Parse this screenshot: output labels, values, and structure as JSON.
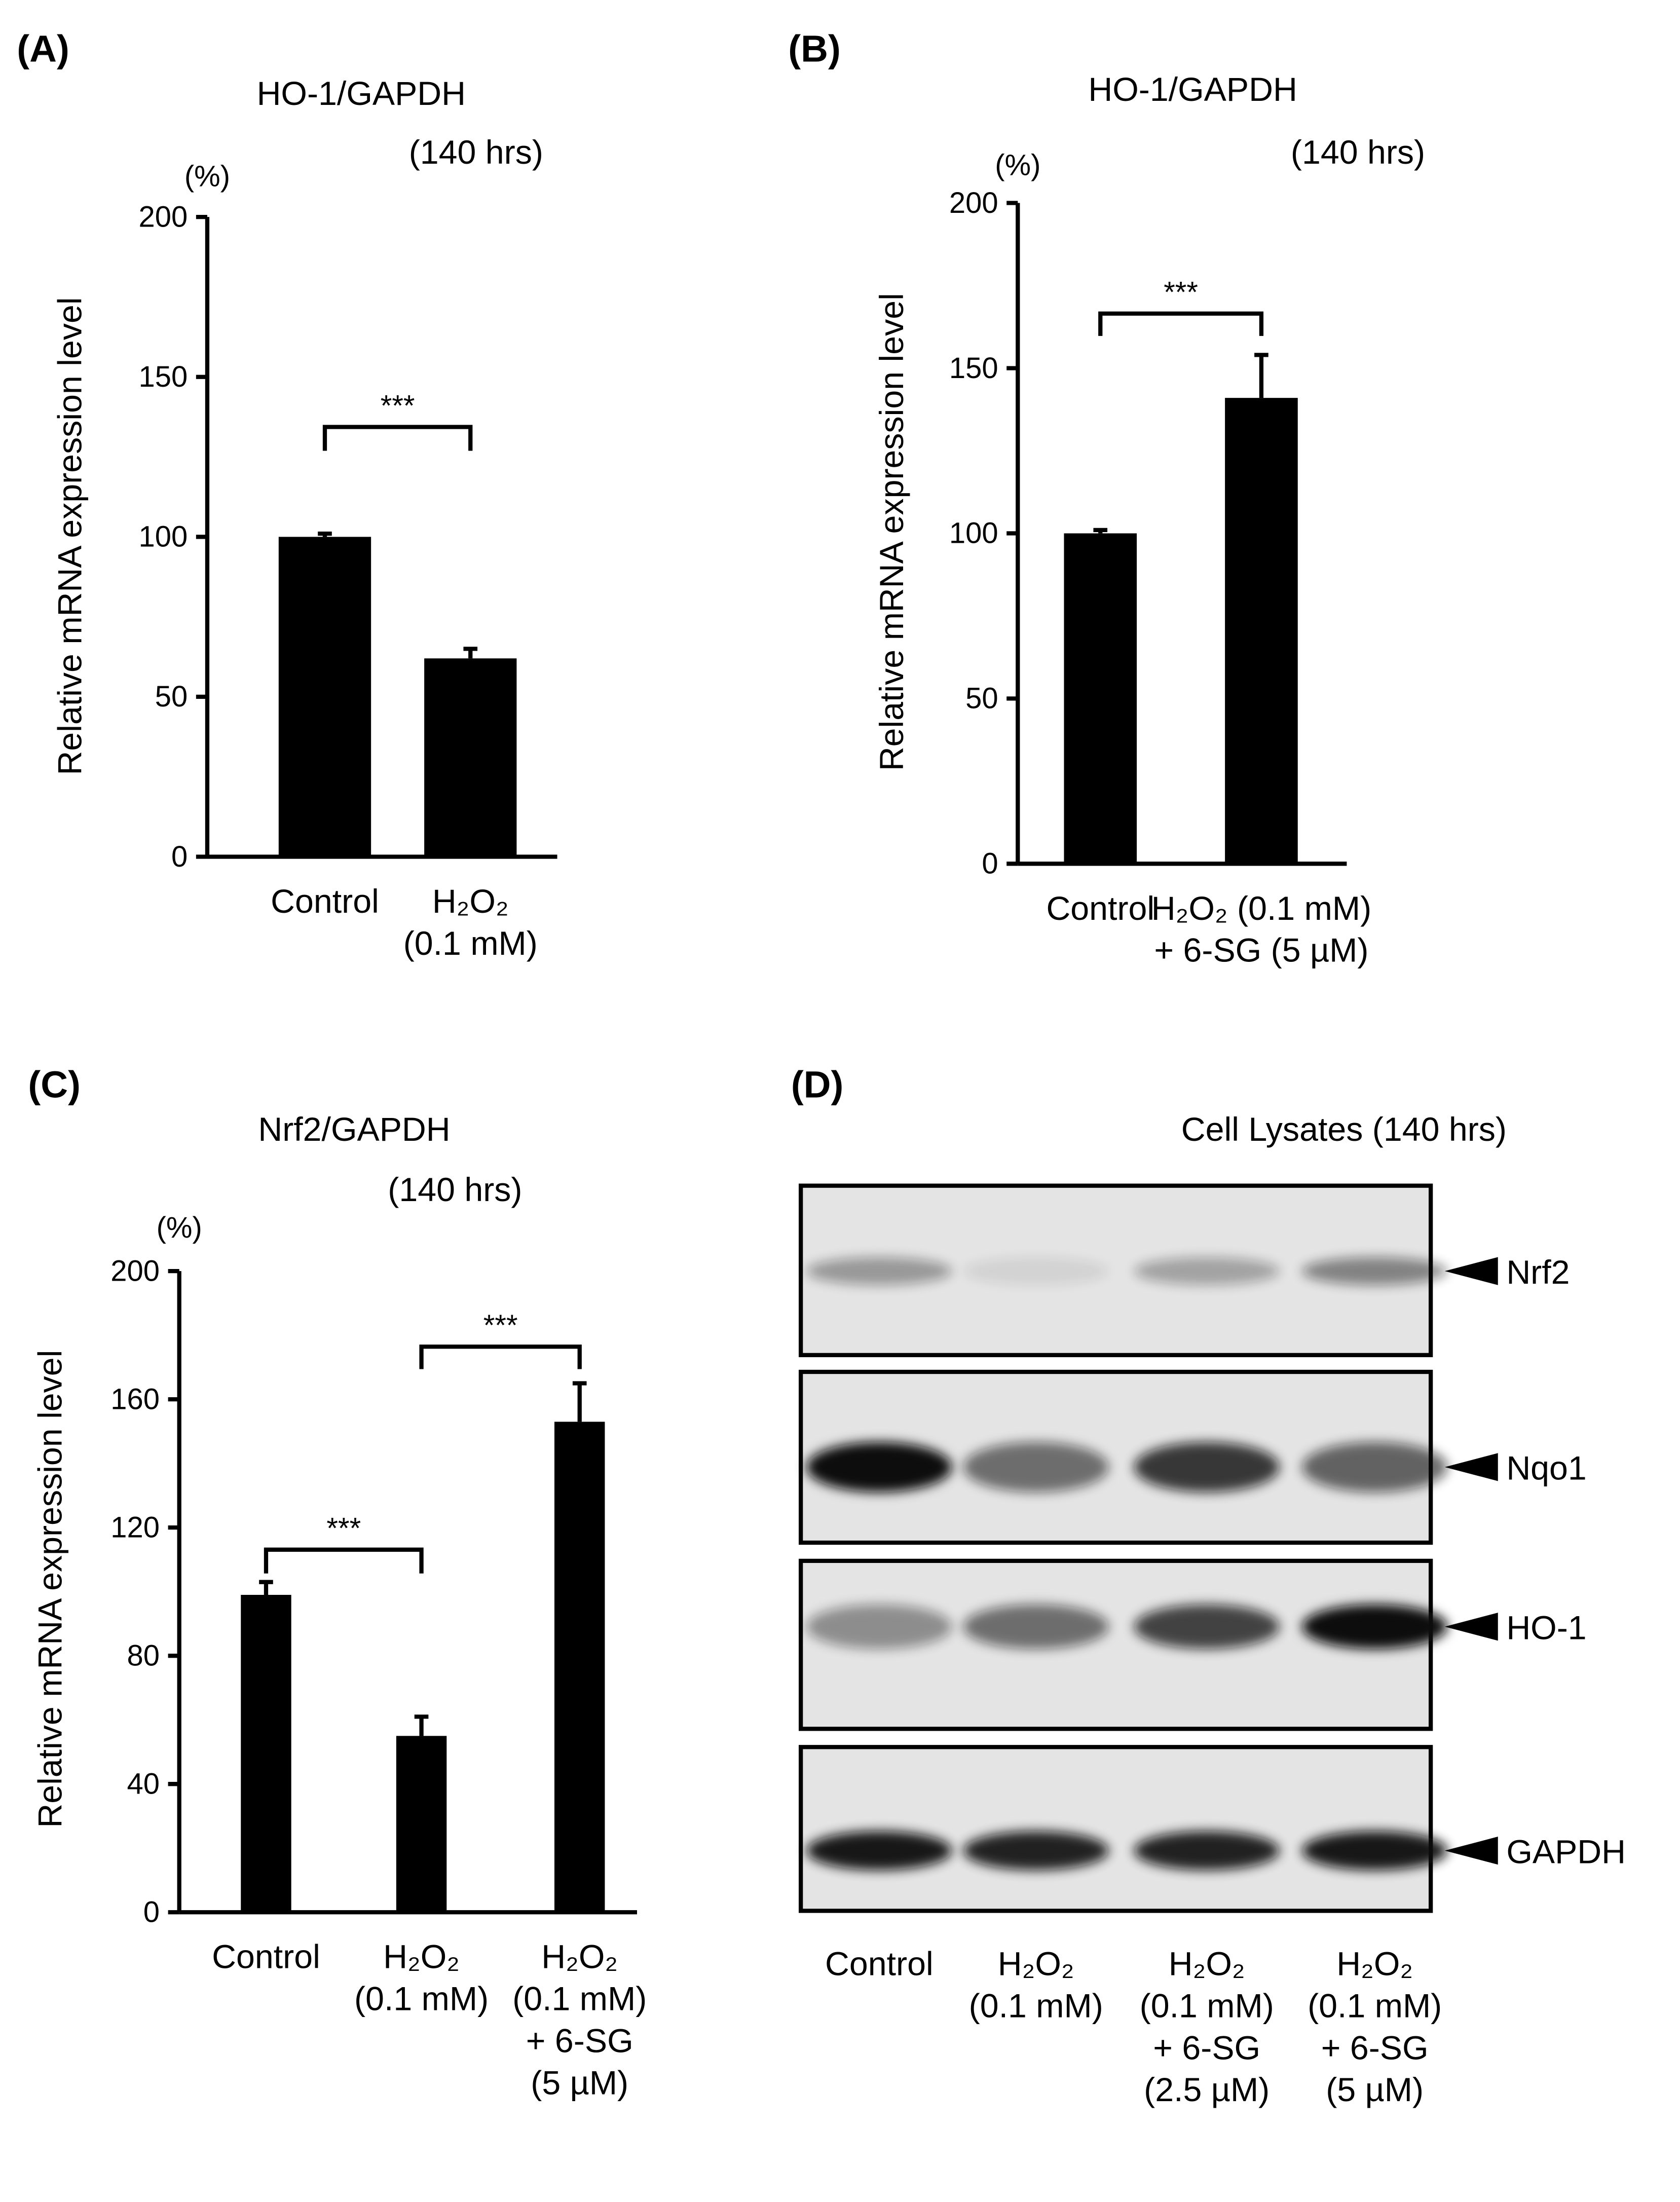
{
  "chart_data": [
    {
      "type": "bar",
      "panel_label": "(A)",
      "title": "HO-1/GAPDH",
      "subtitle": "(140 hrs)",
      "y_unit": "(%)",
      "ylabel": "Relative mRNA expression level",
      "categories": [
        "Control",
        "H₂O₂\n(0.1 mM)"
      ],
      "values": [
        100,
        62
      ],
      "errors": [
        1,
        3
      ],
      "color": "#000000",
      "ylim": [
        0,
        200
      ],
      "yticks": [
        0,
        50,
        100,
        150,
        200
      ],
      "annotations": [
        {
          "text": "***",
          "from": 0,
          "to": 1
        }
      ]
    },
    {
      "type": "bar",
      "panel_label": "(B)",
      "title": "HO-1/GAPDH",
      "subtitle": "(140 hrs)",
      "y_unit": "(%)",
      "ylabel": "Relative mRNA expression level",
      "categories": [
        "Control",
        "H₂O₂ (0.1 mM)\n+ 6-SG (5 µM)"
      ],
      "values": [
        100,
        141
      ],
      "errors": [
        1,
        13
      ],
      "color": "#000000",
      "ylim": [
        0,
        200
      ],
      "yticks": [
        0,
        50,
        100,
        150,
        200
      ],
      "annotations": [
        {
          "text": "***",
          "from": 0,
          "to": 1
        }
      ]
    },
    {
      "type": "bar",
      "panel_label": "(C)",
      "title": "Nrf2/GAPDH",
      "subtitle": "(140 hrs)",
      "y_unit": "(%)",
      "ylabel": "Relative mRNA expression level",
      "categories": [
        "Control",
        "H₂O₂\n(0.1 mM)",
        "H₂O₂\n(0.1 mM)\n+ 6-SG\n(5 µM)"
      ],
      "values": [
        99,
        55,
        153
      ],
      "errors": [
        4,
        6,
        12
      ],
      "color": "#000000",
      "ylim": [
        0,
        200
      ],
      "yticks": [
        0,
        40,
        80,
        120,
        160,
        200
      ],
      "annotations": [
        {
          "text": "***",
          "from": 0,
          "to": 1
        },
        {
          "text": "***",
          "from": 1,
          "to": 2
        }
      ]
    }
  ],
  "blot": {
    "panel_label": "(D)",
    "title": "Cell Lysates (140 hrs)",
    "rows": [
      "Nrf2",
      "Nqo1",
      "HO-1",
      "GAPDH"
    ],
    "lanes": [
      "Control",
      "H₂O₂\n(0.1 mM)",
      "H₂O₂\n(0.1 mM)\n+ 6-SG\n(2.5 µM)",
      "H₂O₂\n(0.1 mM)\n+ 6-SG\n(5 µM)"
    ]
  }
}
